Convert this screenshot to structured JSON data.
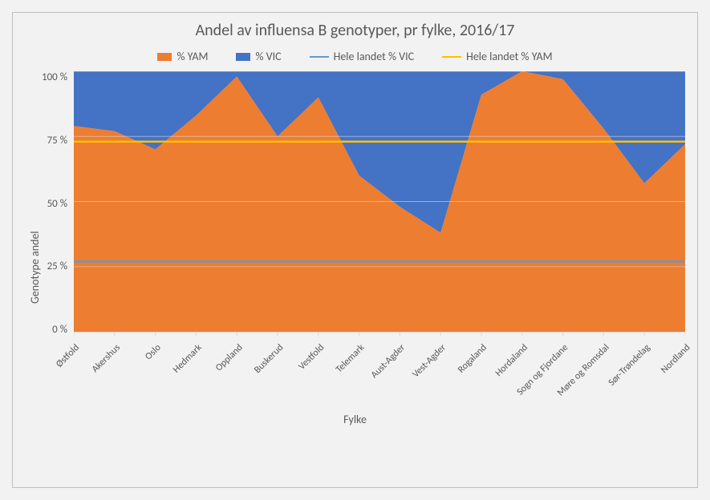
{
  "title": "Andel av influensa B genotyper, pr fylke, 2016/17",
  "x_label": "Fylke",
  "y_label": "Genotype andel",
  "legend": {
    "yam": "% YAM",
    "vic": "% VIC",
    "ref_vic": "Hele landet % VIC",
    "ref_yam": "Hele landet % YAM"
  },
  "categories": [
    "Østfold",
    "Akershus",
    "Oslo",
    "Hedmark",
    "Oppland",
    "Buskerud",
    "Vestfold",
    "Telemark",
    "Aust-Agder",
    "Vest-Agder",
    "Rogaland",
    "Hordaland",
    "Sogn og Fjordane",
    "Møre og Romsdal",
    "Sør-Trøndelag",
    "Nordland"
  ],
  "yam_pct": [
    79,
    77,
    70,
    83,
    98,
    75,
    90,
    60,
    48,
    38,
    91,
    100,
    97,
    78,
    57,
    72
  ],
  "ref_yam_pct": 73,
  "ref_vic_pct": 27,
  "colors": {
    "yam": "#ed7d31",
    "vic": "#4472c4",
    "ref_vic_line": "#5b9bd5",
    "ref_yam_line": "#ffc000",
    "grid": "#d9d9d9",
    "text": "#595959",
    "background": "#f2f2f2",
    "border": "#bfbfbf"
  },
  "y_axis": {
    "min": 0,
    "max": 100,
    "step": 25,
    "tick_labels": [
      "100 %",
      "75 %",
      "50 %",
      "25 %",
      "0 %"
    ]
  },
  "sizes": {
    "title_fontsize": 20,
    "legend_fontsize": 14,
    "tick_fontsize": 13,
    "axis_label_fontsize": 14
  },
  "chart_type": "stacked-area"
}
